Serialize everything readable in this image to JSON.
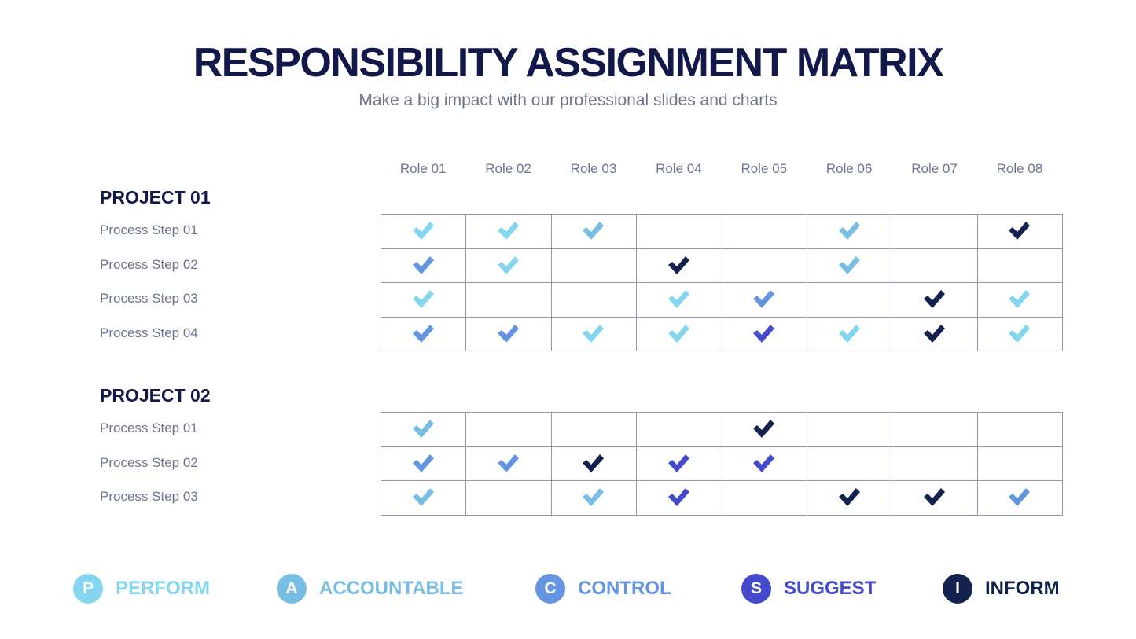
{
  "title": "RESPONSIBILITY ASSIGNMENT MATRIX",
  "subtitle": "Make a big impact with our professional slides and charts",
  "roles": [
    "Role 01",
    "Role 02",
    "Role 03",
    "Role 04",
    "Role 05",
    "Role 06",
    "Role 07",
    "Role 08"
  ],
  "colors": {
    "P": "#84d6ee",
    "A": "#78bde3",
    "C": "#6495e0",
    "S": "#4549cc",
    "I": "#12214e"
  },
  "projects": [
    {
      "name": "PROJECT 01",
      "steps": [
        {
          "label": "Process Step 01",
          "cells": [
            "P",
            "P",
            "A",
            "",
            "",
            "A",
            "",
            "I"
          ]
        },
        {
          "label": "Process Step 02",
          "cells": [
            "C",
            "P",
            "",
            "I",
            "",
            "A",
            "",
            ""
          ]
        },
        {
          "label": "Process Step 03",
          "cells": [
            "P",
            "",
            "",
            "P",
            "C",
            "",
            "I",
            "P"
          ]
        },
        {
          "label": "Process Step 04",
          "cells": [
            "C",
            "C",
            "P",
            "P",
            "S",
            "P",
            "I",
            "P"
          ]
        }
      ]
    },
    {
      "name": "PROJECT 02",
      "steps": [
        {
          "label": "Process Step 01",
          "cells": [
            "A",
            "",
            "",
            "",
            "I",
            "",
            "",
            ""
          ]
        },
        {
          "label": "Process Step 02",
          "cells": [
            "C",
            "C",
            "I",
            "S",
            "S",
            "",
            "",
            ""
          ]
        },
        {
          "label": "Process Step 03",
          "cells": [
            "A",
            "",
            "A",
            "S",
            "",
            "I",
            "I",
            "C"
          ]
        }
      ]
    }
  ],
  "legend": [
    {
      "key": "P",
      "letter": "P",
      "label": "PERFORM"
    },
    {
      "key": "A",
      "letter": "A",
      "label": "ACCOUNTABLE"
    },
    {
      "key": "C",
      "letter": "C",
      "label": "CONTROL"
    },
    {
      "key": "S",
      "letter": "S",
      "label": "SUGGEST"
    },
    {
      "key": "I",
      "letter": "I",
      "label": "INFORM"
    }
  ]
}
